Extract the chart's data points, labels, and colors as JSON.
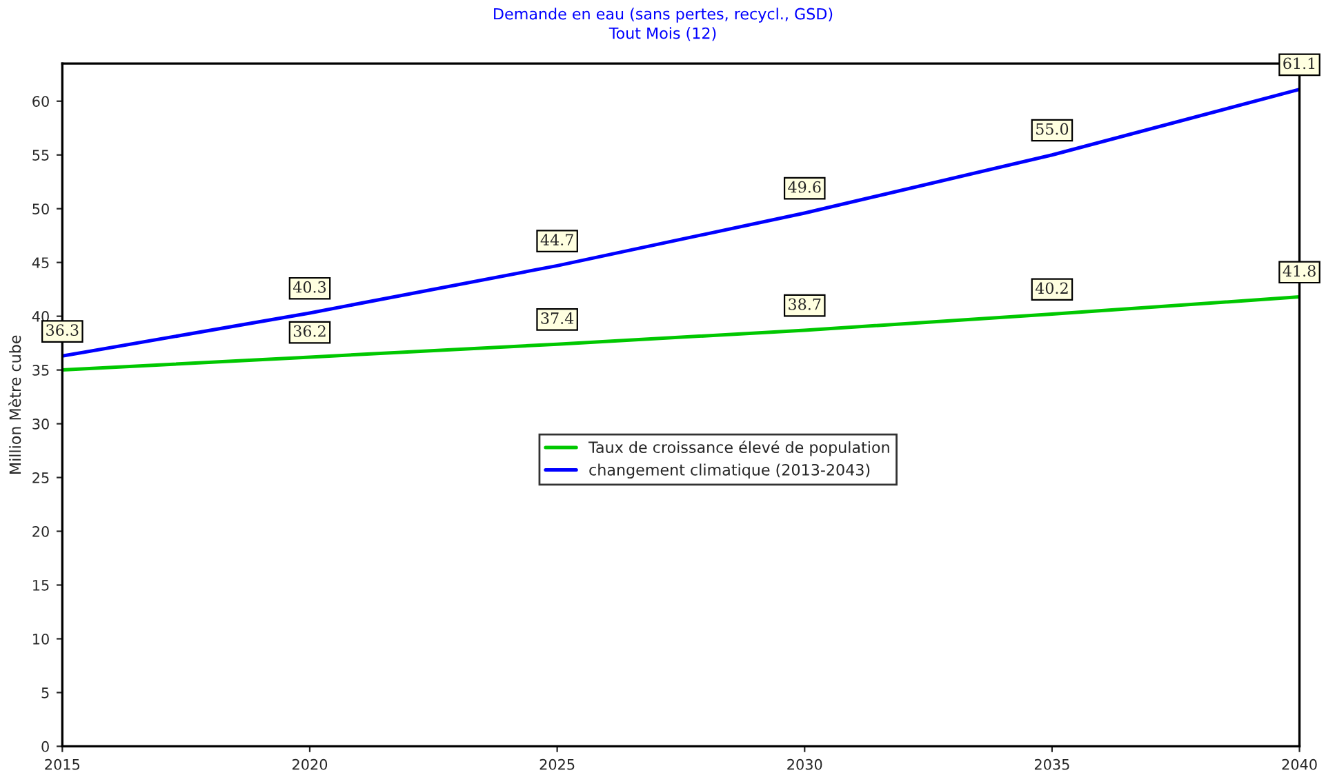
{
  "chart_data": {
    "type": "line",
    "title": "Demande en eau (sans pertes, recycl., GSD)",
    "subtitle": "Tout Mois (12)",
    "ylabel": "Million Mètre cube",
    "x": [
      2015,
      2020,
      2025,
      2030,
      2035,
      2040
    ],
    "series": [
      {
        "name": "Taux de croissance élevé de population",
        "color": "#00c800",
        "values": [
          35.0,
          36.2,
          37.4,
          38.7,
          40.2,
          41.8
        ],
        "value_labels": [
          null,
          "36.2",
          "37.4",
          "38.7",
          "40.2",
          "41.8"
        ]
      },
      {
        "name": "changement climatique (2013-2043)",
        "color": "#0000ff",
        "values": [
          36.3,
          40.3,
          44.7,
          49.6,
          55.0,
          61.1
        ],
        "value_labels": [
          "36.3",
          "40.3",
          "44.7",
          "49.6",
          "55.0",
          "61.1"
        ]
      }
    ],
    "xlim": [
      2015,
      2040
    ],
    "xticks": [
      2015,
      2020,
      2025,
      2030,
      2035,
      2040
    ],
    "ylim": [
      0,
      63.5
    ],
    "yticks": [
      0,
      5,
      10,
      15,
      20,
      25,
      30,
      35,
      40,
      45,
      50,
      55,
      60
    ],
    "grid": false,
    "legend": "center",
    "marker": "none",
    "line_style": "solid"
  }
}
